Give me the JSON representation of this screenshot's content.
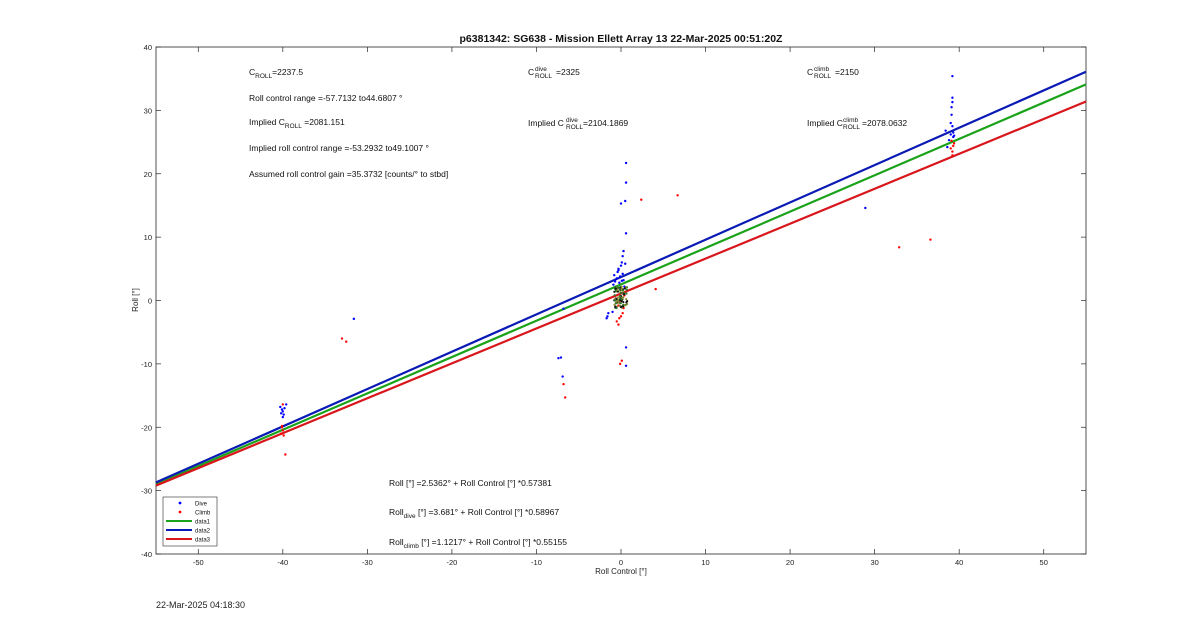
{
  "chart_data": {
    "type": "scatter",
    "title": "p6381342: SG638 - Mission Ellett Array 13 22-Mar-2025 00:51:20Z",
    "xlabel": "Roll Control [°]",
    "ylabel": "Roll [°]",
    "xlim": [
      -55,
      55
    ],
    "ylim": [
      -40,
      40
    ],
    "xticks": [
      -50,
      -40,
      -30,
      -20,
      -10,
      0,
      10,
      20,
      30,
      40,
      50
    ],
    "yticks": [
      -40,
      -30,
      -20,
      -10,
      0,
      10,
      20,
      30,
      40
    ],
    "grid": false,
    "legend_placement": "bottom-left",
    "colors": {
      "dive": "#0000ff",
      "climb": "#ff0000",
      "data1": "#1aa31a",
      "data2": "#0a1ab4",
      "data3": "#d8161b",
      "axes": "#262626"
    },
    "legend": [
      {
        "label": "Dive",
        "kind": "dot",
        "color": "#0000ff"
      },
      {
        "label": "Climb",
        "kind": "dot",
        "color": "#ff0000"
      },
      {
        "label": "data1",
        "kind": "line",
        "color": "#1aa31a"
      },
      {
        "label": "data2",
        "kind": "line",
        "color": "#0a1ab4"
      },
      {
        "label": "data3",
        "kind": "line",
        "color": "#d8161b"
      }
    ],
    "lines": [
      {
        "name": "data1",
        "color": "#1aa31a",
        "x": [
          -55,
          55
        ],
        "y": [
          -29.0,
          34.1
        ]
      },
      {
        "name": "data2",
        "color": "#0a1ab4",
        "x": [
          -55,
          55
        ],
        "y": [
          -28.7,
          36.1
        ]
      },
      {
        "name": "data3",
        "color": "#d8161b",
        "x": [
          -55,
          55
        ],
        "y": [
          -29.2,
          31.4
        ]
      }
    ],
    "series": [
      {
        "name": "Dive",
        "color": "#0000ff",
        "points": [
          [
            -40.1,
            -17.2
          ],
          [
            -40.0,
            -17.5
          ],
          [
            -39.9,
            -18.0
          ],
          [
            -40.2,
            -17.8
          ],
          [
            -39.8,
            -17.0
          ],
          [
            -40.0,
            -18.4
          ],
          [
            -39.6,
            -16.4
          ],
          [
            -40.3,
            -16.8
          ],
          [
            -31.6,
            -2.9
          ],
          [
            -6.8,
            -1.3
          ],
          [
            -7.1,
            -9.0
          ],
          [
            -7.4,
            -9.1
          ],
          [
            -6.9,
            -12.0
          ],
          [
            -1.6,
            -2.5
          ],
          [
            -1.5,
            -2.0
          ],
          [
            -1.7,
            -2.8
          ],
          [
            -1.0,
            -1.8
          ],
          [
            -0.9,
            2.5
          ],
          [
            -0.8,
            4.0
          ],
          [
            -0.7,
            3.0
          ],
          [
            -0.6,
            2.0
          ],
          [
            -0.5,
            3.5
          ],
          [
            -0.4,
            4.5
          ],
          [
            -0.3,
            5.0
          ],
          [
            -0.2,
            2.8
          ],
          [
            -0.1,
            3.8
          ],
          [
            0.0,
            5.5
          ],
          [
            0.1,
            6.0
          ],
          [
            0.2,
            4.2
          ],
          [
            0.3,
            3.2
          ],
          [
            0.4,
            2.2
          ],
          [
            0.5,
            5.8
          ],
          [
            0.2,
            7.0
          ],
          [
            0.3,
            7.8
          ],
          [
            0.6,
            10.6
          ],
          [
            0.0,
            15.3
          ],
          [
            0.5,
            15.7
          ],
          [
            0.6,
            18.6
          ],
          [
            0.6,
            21.7
          ],
          [
            0.6,
            -7.4
          ],
          [
            0.6,
            -10.3
          ],
          [
            -0.3,
            4.8
          ],
          [
            0.1,
            3.1
          ],
          [
            28.9,
            14.6
          ],
          [
            38.4,
            26.8
          ],
          [
            38.6,
            24.2
          ],
          [
            39.0,
            28.0
          ],
          [
            39.1,
            29.3
          ],
          [
            39.1,
            30.5
          ],
          [
            39.2,
            31.3
          ],
          [
            39.2,
            32.0
          ],
          [
            39.2,
            27.5
          ],
          [
            39.3,
            26.5
          ],
          [
            39.3,
            25.8
          ],
          [
            39.4,
            26.0
          ],
          [
            39.0,
            26.2
          ],
          [
            39.2,
            35.4
          ],
          [
            38.8,
            25.3
          ]
        ]
      },
      {
        "name": "Climb",
        "color": "#ff0000",
        "points": [
          [
            -40.0,
            -16.4
          ],
          [
            -40.1,
            -19.8
          ],
          [
            -40.0,
            -20.5
          ],
          [
            -40.2,
            -21.0
          ],
          [
            -39.9,
            -21.3
          ],
          [
            -40.1,
            -20.0
          ],
          [
            -39.7,
            -24.3
          ],
          [
            -33.0,
            -6.0
          ],
          [
            -32.5,
            -6.5
          ],
          [
            -6.8,
            -13.2
          ],
          [
            -6.6,
            -15.3
          ],
          [
            -0.5,
            -3.3
          ],
          [
            -0.3,
            -3.8
          ],
          [
            -0.2,
            -2.8
          ],
          [
            0.0,
            -2.5
          ],
          [
            0.2,
            -2.0
          ],
          [
            0.3,
            -1.2
          ],
          [
            -0.1,
            -0.3
          ],
          [
            0.1,
            0.3
          ],
          [
            -0.3,
            -0.8
          ],
          [
            0.4,
            0.8
          ],
          [
            0.1,
            -9.5
          ],
          [
            -0.1,
            -10.0
          ],
          [
            2.4,
            15.9
          ],
          [
            4.1,
            1.8
          ],
          [
            6.7,
            16.6
          ],
          [
            32.9,
            8.4
          ],
          [
            36.6,
            9.6
          ],
          [
            39.0,
            24.0
          ],
          [
            39.2,
            23.5
          ],
          [
            39.3,
            24.4
          ],
          [
            39.4,
            24.8
          ],
          [
            39.1,
            25.2
          ],
          [
            39.2,
            22.9
          ]
        ]
      }
    ],
    "center_cluster": {
      "x": [
        -0.8,
        0.8
      ],
      "y": [
        -1.2,
        2.2
      ],
      "colors": [
        "#111111",
        "#8a8a30",
        "#2a7a2a"
      ]
    }
  },
  "annotations": {
    "c_roll_prefix": "C",
    "c_roll_sub": "ROLL",
    "c_roll_value": "=2237.5",
    "roll_control_range": "Roll control range =-57.7132 to44.6807 °",
    "implied_c_roll_prefix": "Implied C",
    "implied_c_roll_sub": "ROLL",
    "implied_c_roll_value": " =2081.151",
    "implied_roll_control_range": "Implied roll control range =-53.2932 to49.1007 °",
    "assumed_gain": "Assumed roll control gain =35.3732 [counts/° to stbd]",
    "c_dive_prefix": "C",
    "c_dive_sup": "dive",
    "c_dive_sub": "ROLL",
    "c_dive_value": " =2325",
    "implied_c_dive_prefix": "Implied C",
    "implied_c_dive_sup": "dive",
    "implied_c_dive_sub": "ROLL",
    "implied_c_dive_value": " =2104.1869",
    "c_climb_prefix": "C",
    "c_climb_sup": "climb",
    "c_climb_sub": "ROLL",
    "c_climb_value": " =2150",
    "implied_c_climb_prefix": "Implied C",
    "implied_c_climb_sup": "climb",
    "implied_c_climb_sub": "ROLL",
    "implied_c_climb_value": " =2078.0632",
    "fit_all": "Roll [°] =2.5362° + Roll Control [°] *0.57381",
    "fit_dive_prefix": "Roll",
    "fit_dive_sub": "dive",
    "fit_dive_rest": " [°] =3.681° + Roll Control [°] *0.58967",
    "fit_climb_prefix": "Roll",
    "fit_climb_sub": "climb",
    "fit_climb_rest": " [°] =1.1217° + Roll Control [°] *0.55155"
  },
  "footer": {
    "timestamp": "22-Mar-2025 04:18:30"
  }
}
